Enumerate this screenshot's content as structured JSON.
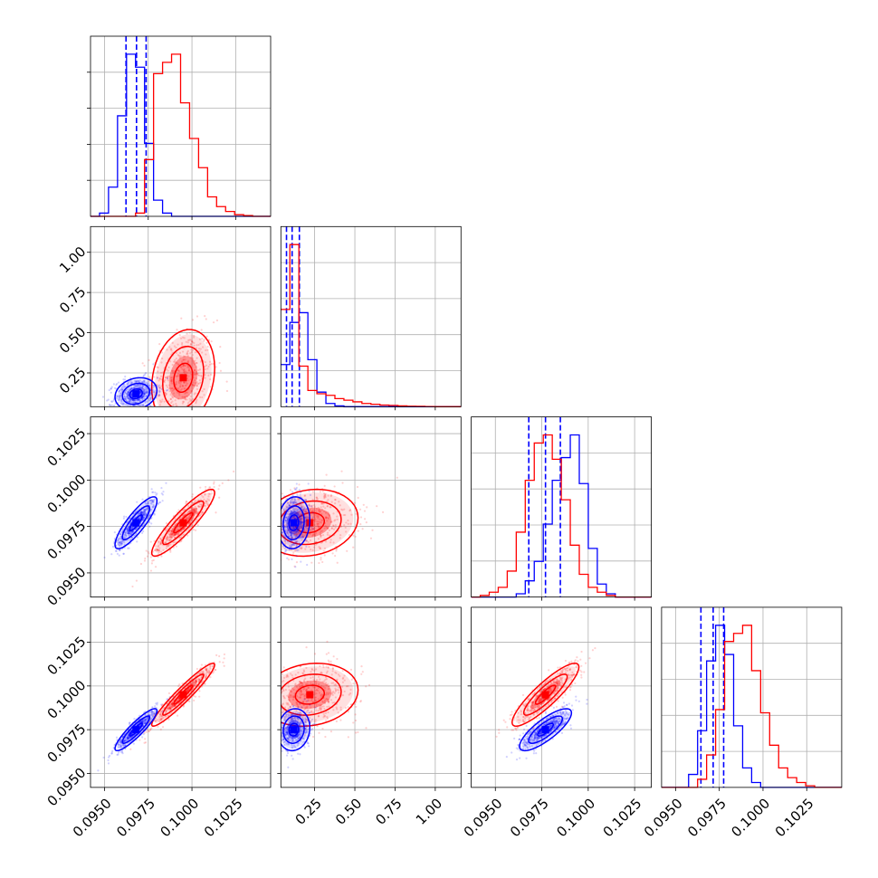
{
  "chart_data": {
    "type": "corner",
    "title": "",
    "grid": true,
    "colors": {
      "blue": "#0000ff",
      "red": "#ff0000"
    },
    "parameters": [
      {
        "index": 0,
        "range": [
          0.0942,
          0.1045
        ],
        "ticks": [
          0.095,
          0.0975,
          0.1,
          0.1025
        ],
        "tick_labels": [
          "0.0950",
          "0.0975",
          "0.1000",
          "0.1025"
        ]
      },
      {
        "index": 1,
        "range": [
          0.04,
          1.16
        ],
        "ticks": [
          0.25,
          0.5,
          0.75,
          1.0
        ],
        "tick_labels": [
          "0.25",
          "0.50",
          "0.75",
          "1.00"
        ]
      },
      {
        "index": 2,
        "range": [
          0.0937,
          0.1034
        ],
        "ticks": [
          0.095,
          0.0975,
          0.1,
          0.1025
        ],
        "tick_labels": [
          "0.0950",
          "0.0975",
          "0.1000",
          "0.1025"
        ]
      },
      {
        "index": 3,
        "range": [
          0.0942,
          0.1045
        ],
        "ticks": [
          0.095,
          0.0975,
          0.1,
          0.1025
        ],
        "tick_labels": [
          "0.0950",
          "0.0975",
          "0.1000",
          "0.1025"
        ]
      }
    ],
    "series": [
      {
        "color": "#0000ff",
        "means": [
          0.0968,
          0.12,
          0.0977,
          0.0975
        ],
        "sds": [
          0.0006,
          0.05,
          0.0007,
          0.0006
        ],
        "quantiles": [
          [
            0.09623,
            0.09683,
            0.09738
          ],
          [
            0.075,
            0.11,
            0.155
          ],
          [
            0.0968,
            0.0977,
            0.0985
          ],
          [
            0.09645,
            0.09715,
            0.09775
          ]
        ],
        "histograms": [
          [
            0,
            0.02,
            0.18,
            0.62,
            1.0,
            0.92,
            0.45,
            0.1,
            0.02,
            0,
            0,
            0,
            0,
            0,
            0,
            0,
            0,
            0,
            0,
            0
          ],
          [
            0.26,
            0.52,
            0.58,
            0.29,
            0.09,
            0.02,
            0.005,
            0,
            0,
            0,
            0,
            0,
            0,
            0,
            0,
            0,
            0,
            0,
            0,
            0
          ],
          [
            0,
            0,
            0,
            0,
            0,
            0.02,
            0.1,
            0.22,
            0.45,
            0.72,
            0.86,
            1.0,
            0.7,
            0.3,
            0.08,
            0.02,
            0,
            0,
            0,
            0
          ],
          [
            0,
            0,
            0,
            0.08,
            0.35,
            0.78,
            1.0,
            0.82,
            0.38,
            0.12,
            0.03,
            0,
            0,
            0,
            0,
            0,
            0,
            0,
            0,
            0
          ]
        ],
        "correlation": [
          [
            1,
            0.2,
            0.85,
            0.9
          ],
          [
            0.2,
            1,
            0.1,
            0.1
          ],
          [
            0.85,
            0.1,
            1,
            0.8
          ],
          [
            0.9,
            0.1,
            0.8,
            1
          ]
        ]
      },
      {
        "color": "#ff0000",
        "means": [
          0.0995,
          0.22,
          0.0977,
          0.0995
        ],
        "sds": [
          0.0009,
          0.15,
          0.0009,
          0.0009
        ],
        "quantiles": [],
        "histograms": [
          [
            0,
            0,
            0,
            0,
            0,
            0.02,
            0.35,
            0.88,
            0.95,
            1.0,
            0.7,
            0.48,
            0.3,
            0.12,
            0.06,
            0.03,
            0.01,
            0.005,
            0,
            0
          ],
          [
            0.6,
            1.0,
            0.25,
            0.1,
            0.08,
            0.07,
            0.05,
            0.04,
            0.03,
            0.02,
            0.015,
            0.01,
            0.008,
            0.005,
            0.003,
            0.002,
            0.001,
            0,
            0,
            0
          ],
          [
            0,
            0.01,
            0.03,
            0.06,
            0.16,
            0.4,
            0.72,
            0.95,
            1.0,
            0.85,
            0.6,
            0.32,
            0.14,
            0.06,
            0.03,
            0.01,
            0,
            0,
            0,
            0
          ],
          [
            0,
            0,
            0,
            0,
            0.05,
            0.2,
            0.48,
            0.9,
            0.95,
            1.0,
            0.72,
            0.46,
            0.26,
            0.12,
            0.06,
            0.03,
            0.01,
            0,
            0,
            0
          ]
        ],
        "correlation": [
          [
            1,
            0.2,
            0.9,
            0.95
          ],
          [
            0.2,
            1,
            0.15,
            0.15
          ],
          [
            0.9,
            0.15,
            1,
            0.88
          ],
          [
            0.95,
            0.15,
            0.88,
            1
          ]
        ]
      }
    ]
  }
}
